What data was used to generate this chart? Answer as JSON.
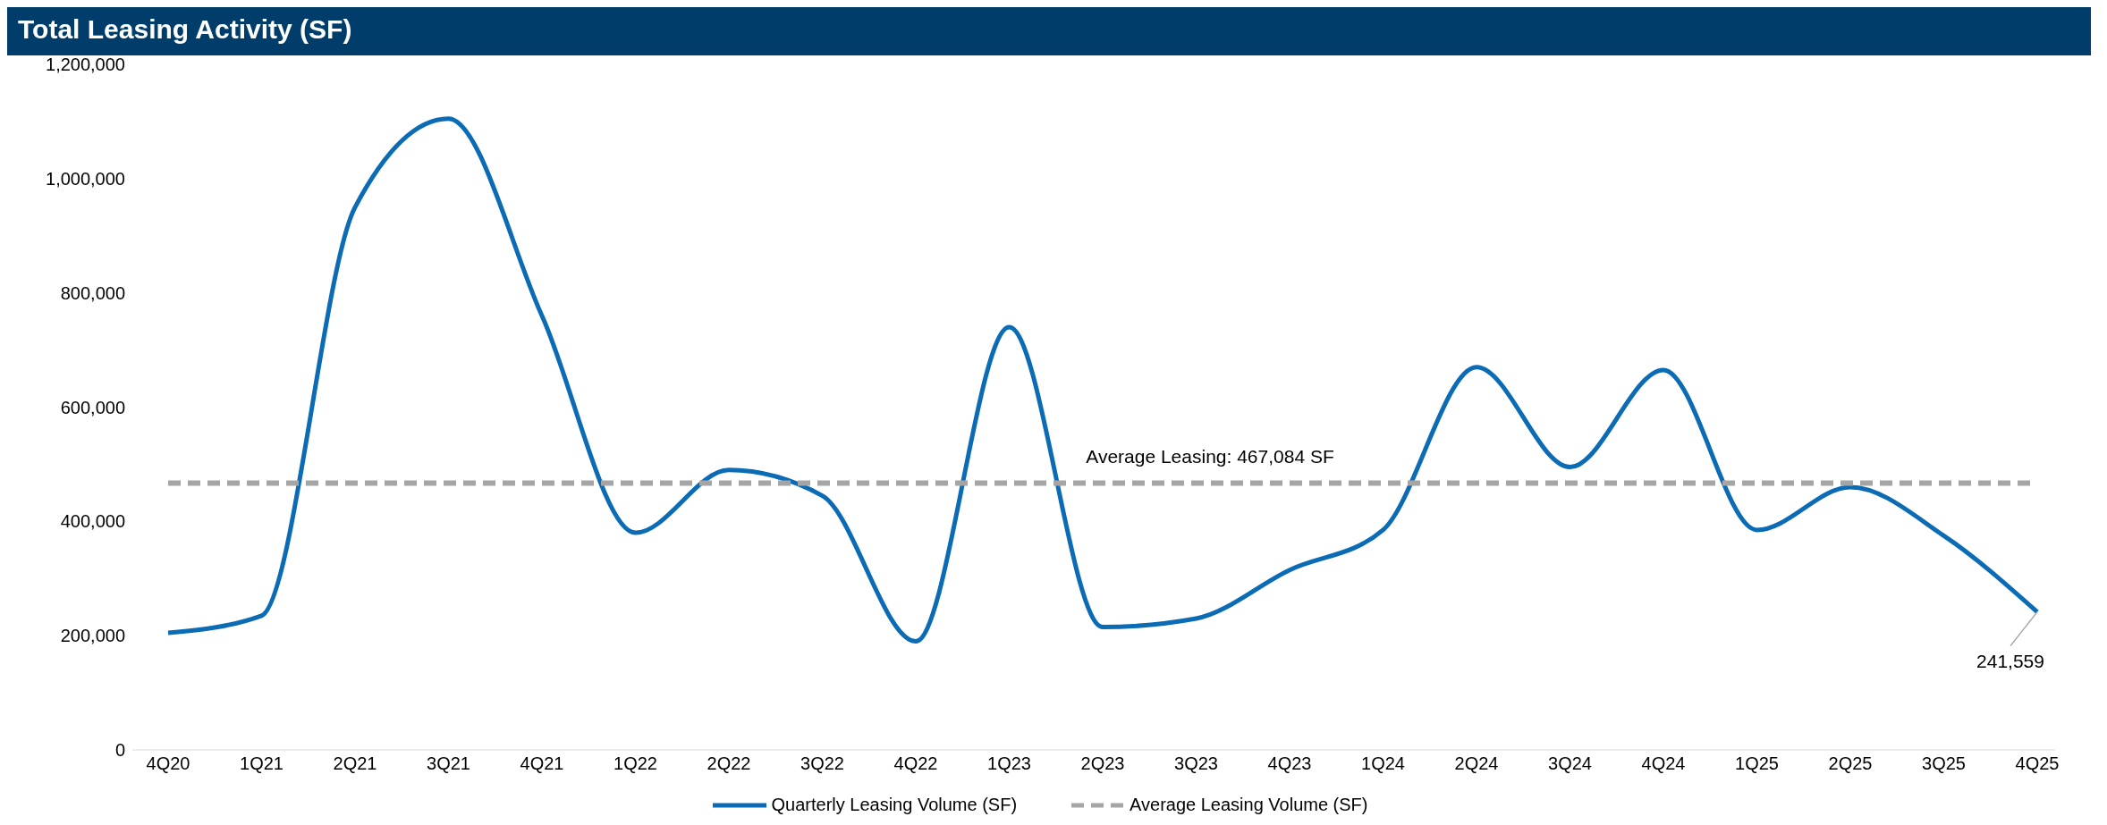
{
  "chart_data": {
    "type": "line",
    "title": "Total Leasing Activity (SF)",
    "categories": [
      "4Q20",
      "1Q21",
      "2Q21",
      "3Q21",
      "4Q21",
      "1Q22",
      "2Q22",
      "3Q22",
      "4Q22",
      "1Q23",
      "2Q23",
      "3Q23",
      "4Q23",
      "1Q24",
      "2Q24",
      "3Q24",
      "4Q24",
      "1Q25",
      "2Q25",
      "3Q25",
      "4Q25"
    ],
    "series": [
      {
        "name": "Quarterly Leasing Volume (SF)",
        "color": "#0b6bb5",
        "line_style": "solid",
        "values": [
          205000,
          235000,
          950000,
          1105000,
          760000,
          380000,
          490000,
          445000,
          190000,
          740000,
          215000,
          230000,
          315000,
          385000,
          670000,
          495000,
          665000,
          385000,
          460000,
          375000,
          241559
        ],
        "value_labels": [
          null,
          null,
          null,
          null,
          null,
          null,
          null,
          null,
          null,
          null,
          null,
          null,
          null,
          null,
          null,
          null,
          null,
          null,
          null,
          null,
          "241,559"
        ]
      },
      {
        "name": "Average Leasing Volume (SF)",
        "color": "#a5a5a5",
        "line_style": "dashed",
        "values": [
          467084,
          467084,
          467084,
          467084,
          467084,
          467084,
          467084,
          467084,
          467084,
          467084,
          467084,
          467084,
          467084,
          467084,
          467084,
          467084,
          467084,
          467084,
          467084,
          467084,
          467084
        ]
      }
    ],
    "annotations": [
      {
        "text": "Average Leasing: 467,084 SF",
        "x": "2Q23",
        "y": 467084
      }
    ],
    "ylim": [
      0,
      1200000
    ],
    "yticks": [
      0,
      {
        "value": 200000,
        "label": "200,000"
      },
      {
        "value": 400000,
        "label": "400,000"
      },
      {
        "value": 600000,
        "label": "600,000"
      },
      {
        "value": 800000,
        "label": "800,000"
      },
      {
        "value": 1000000,
        "label": "1,000,000"
      },
      {
        "value": 1200000,
        "label": "1,200,000"
      }
    ],
    "legend": "bottom",
    "marker": "none"
  }
}
